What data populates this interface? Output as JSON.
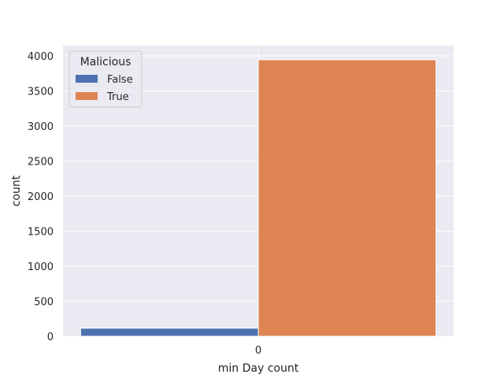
{
  "chart_data": {
    "type": "bar",
    "categories": [
      "0"
    ],
    "series": [
      {
        "name": "False",
        "color": "#4c72b0",
        "values": [
          115
        ]
      },
      {
        "name": "True",
        "color": "#dd8452",
        "values": [
          3945
        ]
      }
    ],
    "xlabel": "min Day count",
    "ylabel": "count",
    "ylim": [
      0,
      4000
    ],
    "yticks": [
      0,
      500,
      1000,
      1500,
      2000,
      2500,
      3000,
      3500,
      4000
    ],
    "grid": true,
    "legend": {
      "title": "Malicious",
      "placement": "top-left"
    }
  }
}
